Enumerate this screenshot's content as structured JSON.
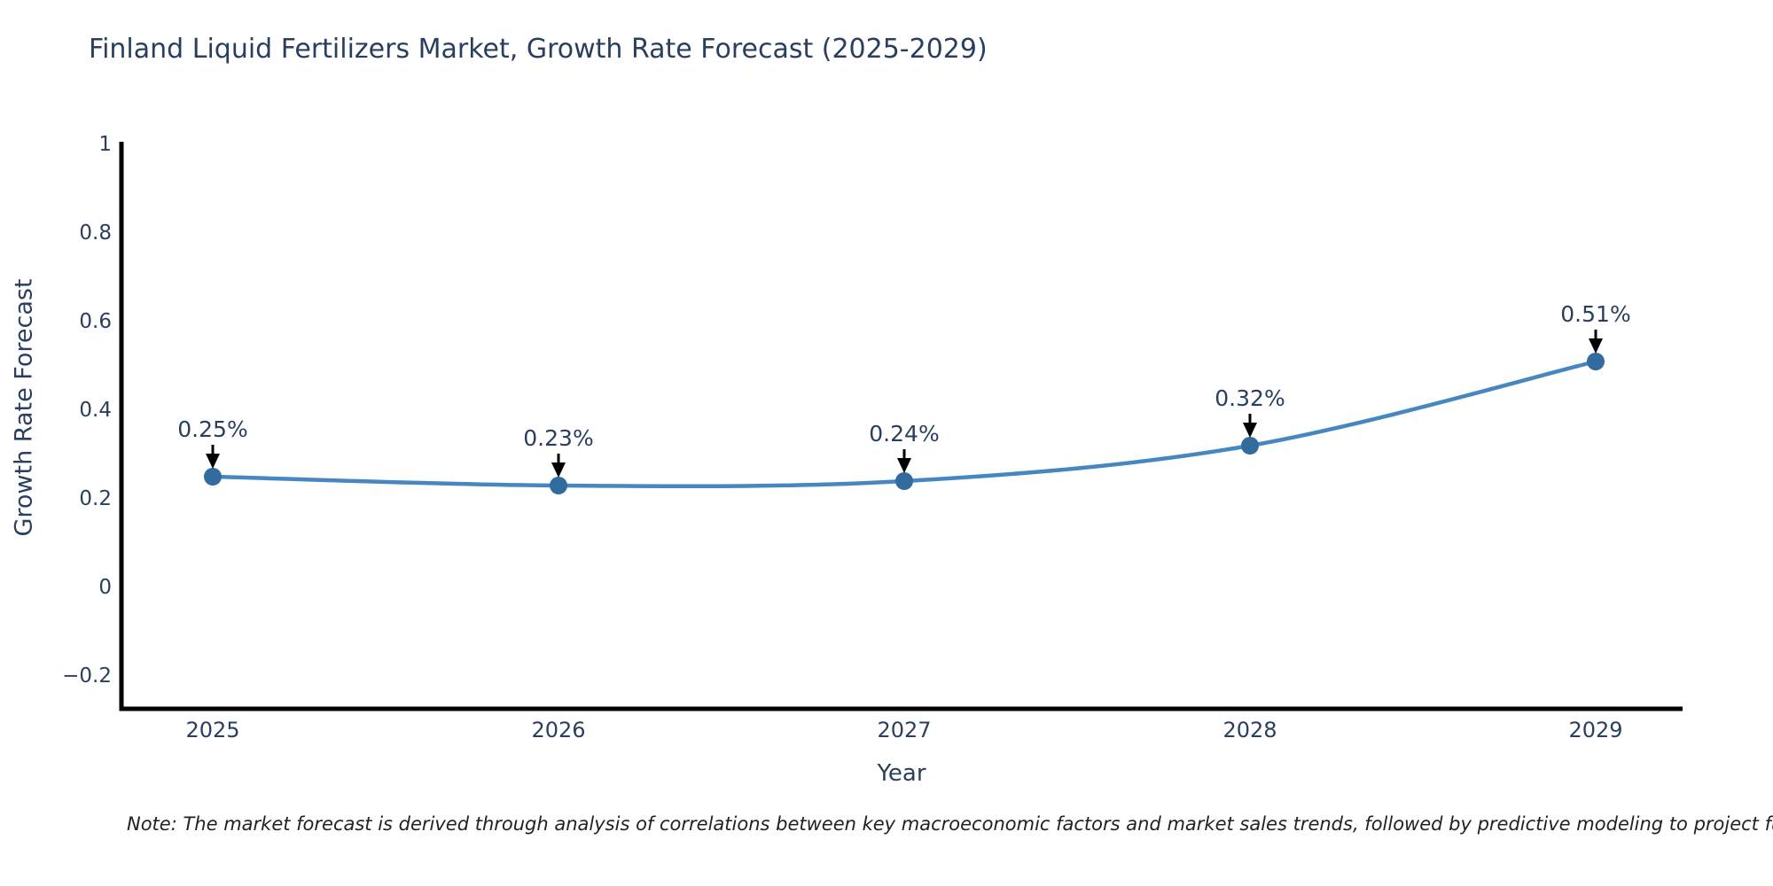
{
  "chart_data": {
    "type": "line",
    "title": "Finland Liquid Fertilizers Market, Growth Rate Forecast (2025-2029)",
    "xlabel": "Year",
    "ylabel": "Growth Rate Forecast",
    "x": [
      2025,
      2026,
      2027,
      2028,
      2029
    ],
    "values": [
      0.25,
      0.23,
      0.24,
      0.32,
      0.51
    ],
    "point_labels": [
      "0.25%",
      "0.23%",
      "0.24%",
      "0.32%",
      "0.51%"
    ],
    "xtick_labels": [
      "2025",
      "2026",
      "2027",
      "2028",
      "2029"
    ],
    "ytick_values": [
      1,
      0.8,
      0.6,
      0.4,
      0.2,
      0,
      -0.2
    ],
    "ytick_labels": [
      "1",
      "0.8",
      "0.6",
      "0.4",
      "0.2",
      "0",
      "−0.2"
    ],
    "ylim": [
      -0.27,
      1.01
    ],
    "grid": false,
    "legend": false,
    "line_style": "spline",
    "annotation_style": "down-arrow"
  },
  "note": {
    "text": "Note: The market forecast is derived through analysis of correlations between key macroeconomic factors and market sales trends, followed by predictive modeling to project future sales."
  },
  "colors": {
    "line": "#4787c1",
    "marker": "#326b9e",
    "arrow": "#000000",
    "axis": "#000000",
    "text": "#2a3f5f",
    "note_text": "#222222",
    "background": "#ffffff"
  }
}
